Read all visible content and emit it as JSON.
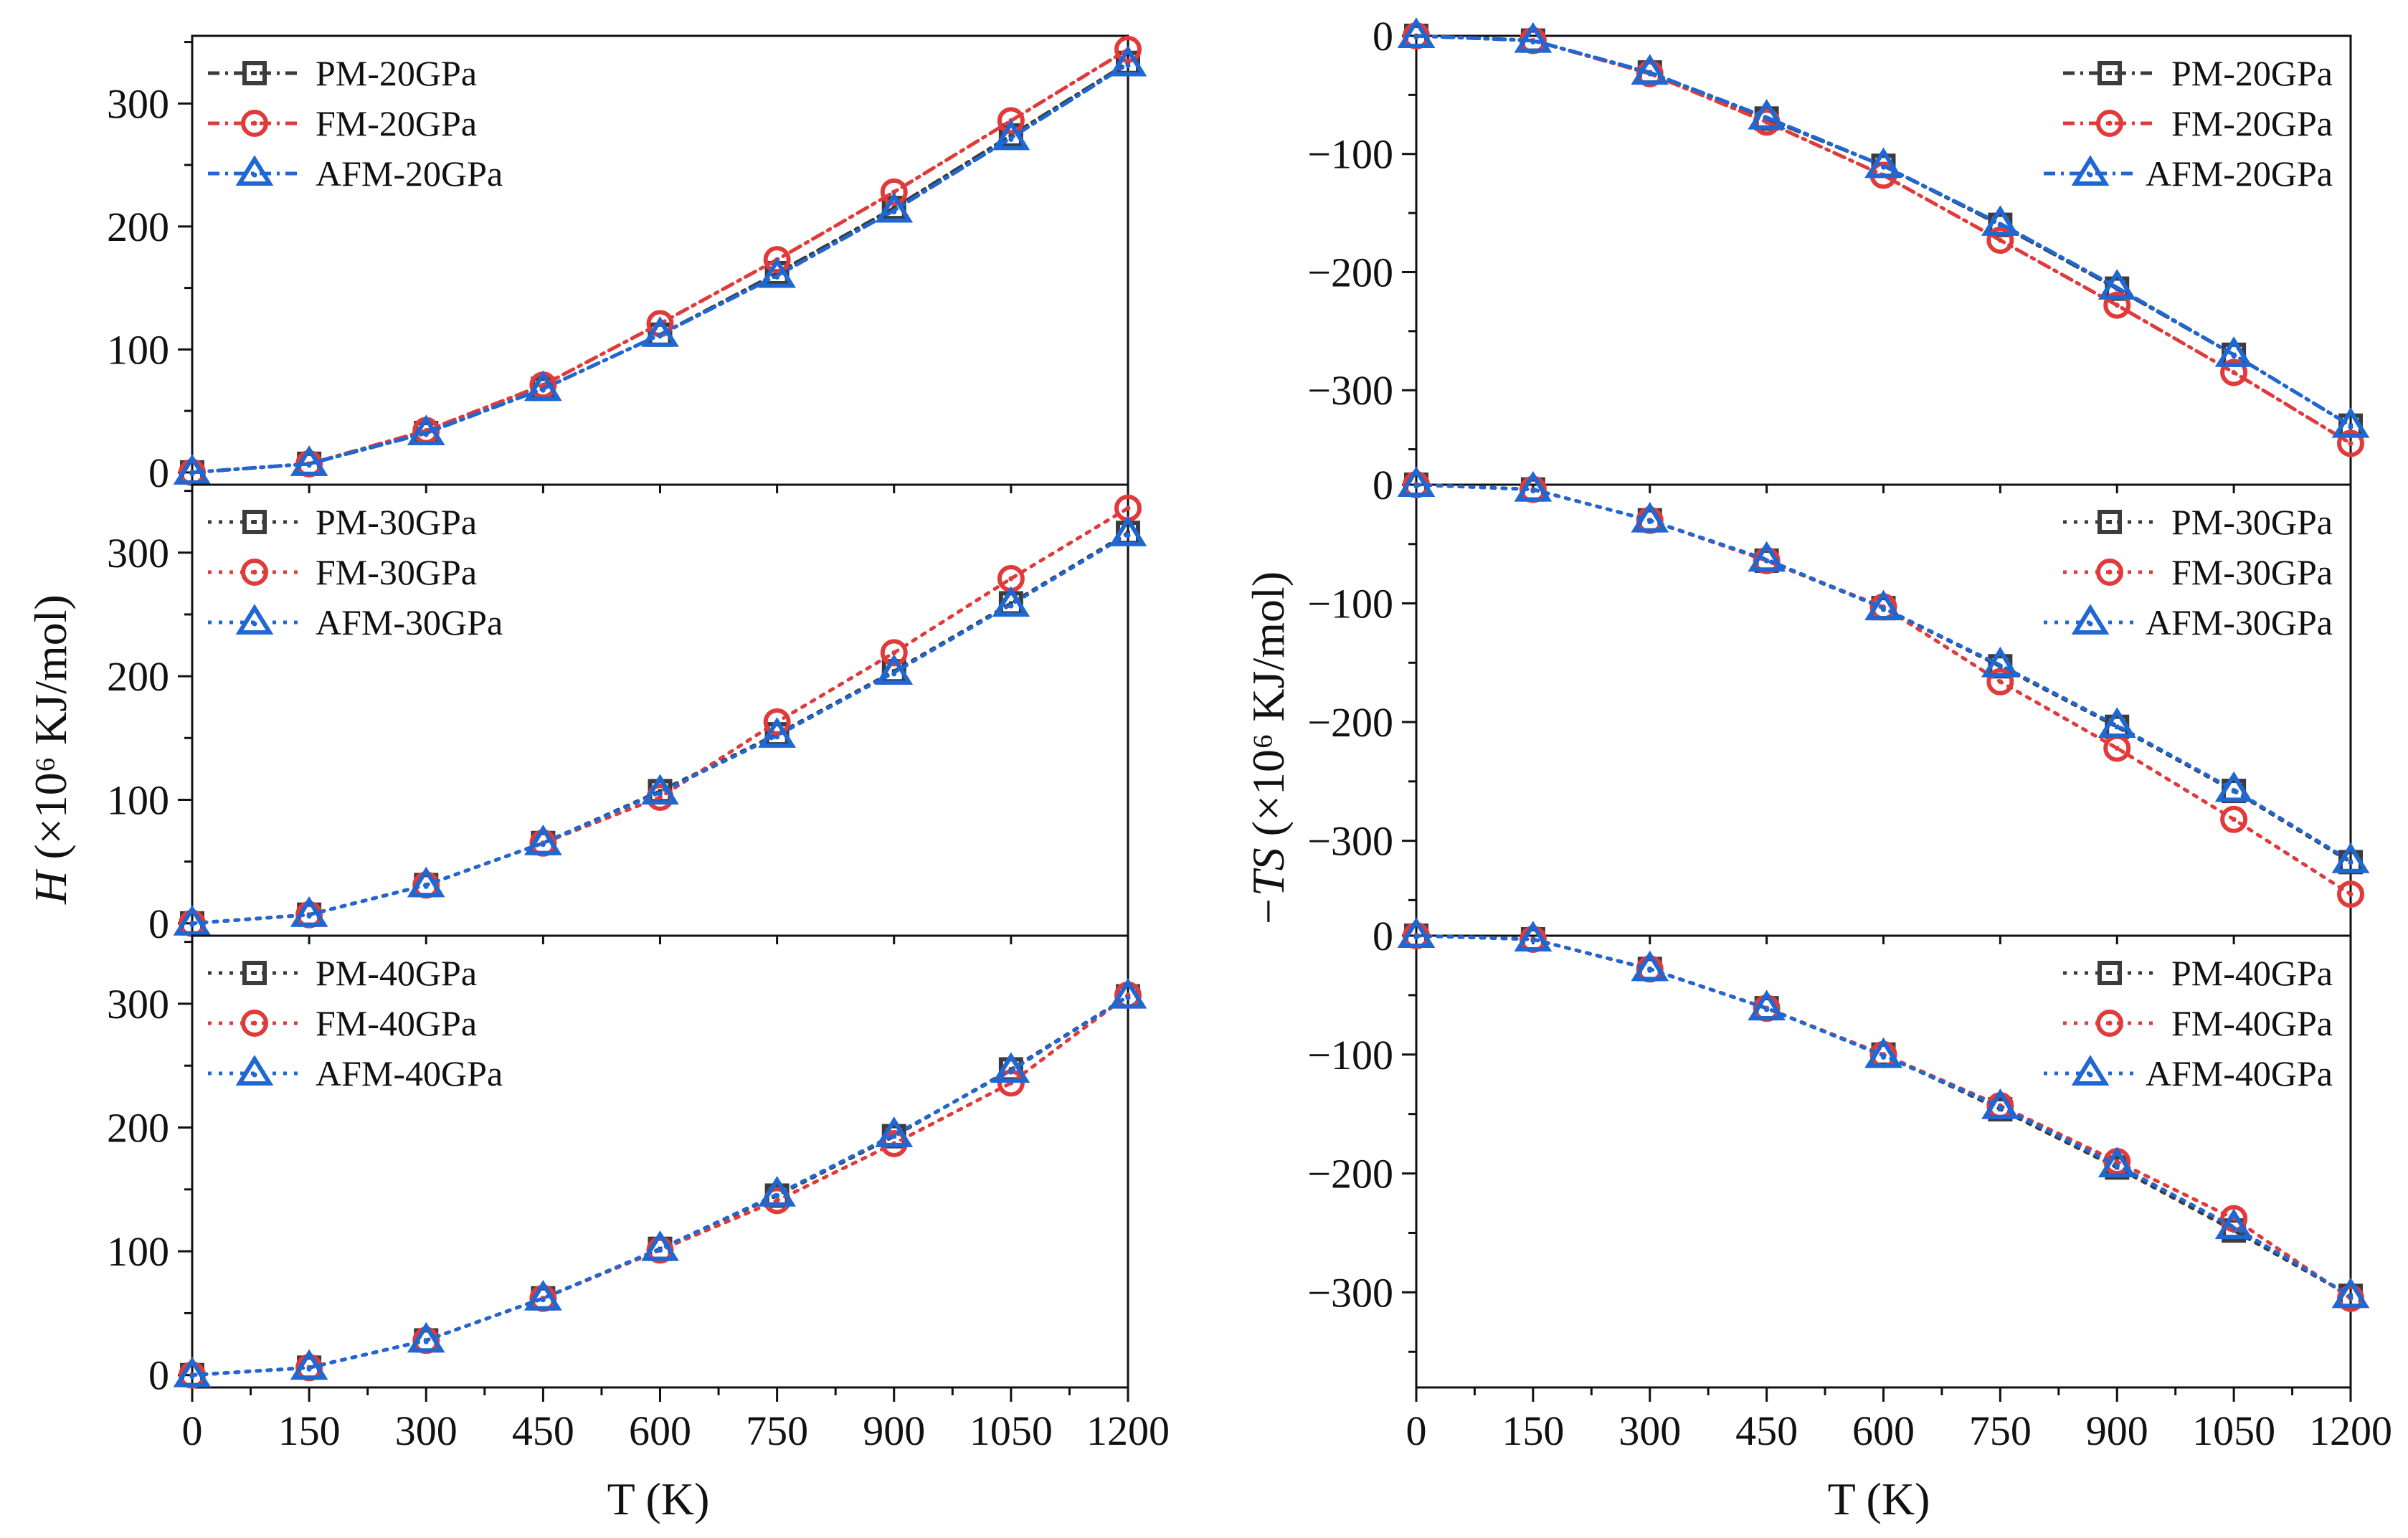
{
  "figure": {
    "left_ylabel_symbol": "H",
    "left_ylabel_unit": " (×10⁶ KJ/mol)",
    "right_ylabel_symbol": "−TS",
    "right_ylabel_unit": " (×10⁶ KJ/mol)",
    "left_xlabel": "T (K)",
    "right_xlabel": "T (K)"
  },
  "colors": {
    "PM": "#3c3c3c",
    "FM": "#e03a3a",
    "AFM": "#1f67d2"
  },
  "chart_data": [
    {
      "type": "line",
      "title": "",
      "xlabel": "T (K)",
      "ylabel": "H (×10^6 KJ/mol)",
      "xlim": [
        0,
        1200
      ],
      "ylim": [
        -10,
        355
      ],
      "yticks": [
        0,
        100,
        200,
        300
      ],
      "x": [
        0,
        150,
        300,
        450,
        600,
        750,
        900,
        1050,
        1200
      ],
      "legend_position": "top-left",
      "line_style": "dashdot",
      "series": [
        {
          "name": "PM-20GPa",
          "values": [
            0,
            7,
            32,
            68,
            112,
            162,
            215,
            274,
            333
          ]
        },
        {
          "name": "FM-20GPa",
          "values": [
            0,
            7,
            34,
            71,
            121,
            173,
            228,
            286,
            344
          ]
        },
        {
          "name": "AFM-20GPa",
          "values": [
            0,
            7,
            32,
            68,
            112,
            160,
            213,
            272,
            332
          ]
        }
      ]
    },
    {
      "type": "line",
      "title": "",
      "xlabel": "T (K)",
      "ylabel": "H (×10^6 KJ/mol)",
      "xlim": [
        0,
        1200
      ],
      "ylim": [
        -10,
        355
      ],
      "yticks": [
        0,
        100,
        200,
        300
      ],
      "x": [
        0,
        150,
        300,
        450,
        600,
        750,
        900,
        1050,
        1200
      ],
      "legend_position": "top-left",
      "line_style": "dotted",
      "series": [
        {
          "name": "PM-30GPa",
          "values": [
            0,
            7,
            31,
            65,
            107,
            153,
            204,
            259,
            316
          ]
        },
        {
          "name": "FM-30GPa",
          "values": [
            0,
            7,
            31,
            65,
            102,
            163,
            219,
            279,
            336
          ]
        },
        {
          "name": "AFM-30GPa",
          "values": [
            0,
            7,
            31,
            65,
            106,
            152,
            203,
            258,
            315
          ]
        }
      ]
    },
    {
      "type": "line",
      "title": "",
      "xlabel": "T (K)",
      "ylabel": "H (×10^6 KJ/mol)",
      "xlim": [
        0,
        1200
      ],
      "ylim": [
        -10,
        355
      ],
      "yticks": [
        0,
        100,
        200,
        300
      ],
      "x": [
        0,
        150,
        300,
        450,
        600,
        750,
        900,
        1050,
        1200
      ],
      "legend_position": "top-left",
      "line_style": "dotted",
      "series": [
        {
          "name": "PM-40GPa",
          "values": [
            0,
            6,
            28,
            62,
            102,
            145,
            193,
            247,
            306
          ]
        },
        {
          "name": "FM-40GPa",
          "values": [
            0,
            6,
            28,
            62,
            101,
            141,
            187,
            236,
            307
          ]
        },
        {
          "name": "AFM-40GPa",
          "values": [
            0,
            6,
            28,
            62,
            102,
            146,
            194,
            246,
            306
          ]
        }
      ]
    },
    {
      "type": "line",
      "title": "",
      "xlabel": "T (K)",
      "ylabel": "−TS (×10^6 KJ/mol)",
      "xlim": [
        0,
        1200
      ],
      "ylim": [
        -380,
        0
      ],
      "yticks": [
        0,
        -100,
        -200,
        -300
      ],
      "x": [
        0,
        150,
        300,
        450,
        600,
        750,
        900,
        1050,
        1200
      ],
      "legend_position": "top-right",
      "line_style": "dashdot",
      "series": [
        {
          "name": "PM-20GPa",
          "values": [
            0,
            -4,
            -31,
            -70,
            -110,
            -160,
            -214,
            -270,
            -330
          ]
        },
        {
          "name": "FM-20GPa",
          "values": [
            0,
            -4,
            -32,
            -73,
            -118,
            -173,
            -228,
            -285,
            -345
          ]
        },
        {
          "name": "AFM-20GPa",
          "values": [
            0,
            -4,
            -31,
            -69,
            -110,
            -159,
            -213,
            -270,
            -330
          ]
        }
      ]
    },
    {
      "type": "line",
      "title": "",
      "xlabel": "T (K)",
      "ylabel": "−TS (×10^6 KJ/mol)",
      "xlim": [
        0,
        1200
      ],
      "ylim": [
        -380,
        0
      ],
      "yticks": [
        0,
        -100,
        -200,
        -300
      ],
      "x": [
        0,
        150,
        300,
        450,
        600,
        750,
        900,
        1050,
        1200
      ],
      "legend_position": "top-right",
      "line_style": "dotted",
      "series": [
        {
          "name": "PM-30GPa",
          "values": [
            0,
            -4,
            -30,
            -64,
            -104,
            -153,
            -204,
            -258,
            -318
          ]
        },
        {
          "name": "FM-30GPa",
          "values": [
            0,
            -4,
            -30,
            -64,
            -103,
            -166,
            -222,
            -282,
            -345
          ]
        },
        {
          "name": "AFM-30GPa",
          "values": [
            0,
            -4,
            -30,
            -63,
            -104,
            -152,
            -203,
            -257,
            -317
          ]
        }
      ]
    },
    {
      "type": "line",
      "title": "",
      "xlabel": "T (K)",
      "ylabel": "−TS (×10^6 KJ/mol)",
      "xlim": [
        0,
        1200
      ],
      "ylim": [
        -380,
        0
      ],
      "yticks": [
        0,
        -100,
        -200,
        -300
      ],
      "x": [
        0,
        150,
        300,
        450,
        600,
        750,
        900,
        1050,
        1200
      ],
      "legend_position": "top-right",
      "line_style": "dotted",
      "series": [
        {
          "name": "PM-40GPa",
          "values": [
            0,
            -3,
            -28,
            -61,
            -100,
            -146,
            -195,
            -248,
            -303
          ]
        },
        {
          "name": "FM-40GPa",
          "values": [
            0,
            -3,
            -28,
            -61,
            -100,
            -143,
            -190,
            -238,
            -305
          ]
        },
        {
          "name": "AFM-40GPa",
          "values": [
            0,
            -3,
            -28,
            -61,
            -101,
            -144,
            -193,
            -245,
            -303
          ]
        }
      ]
    }
  ]
}
